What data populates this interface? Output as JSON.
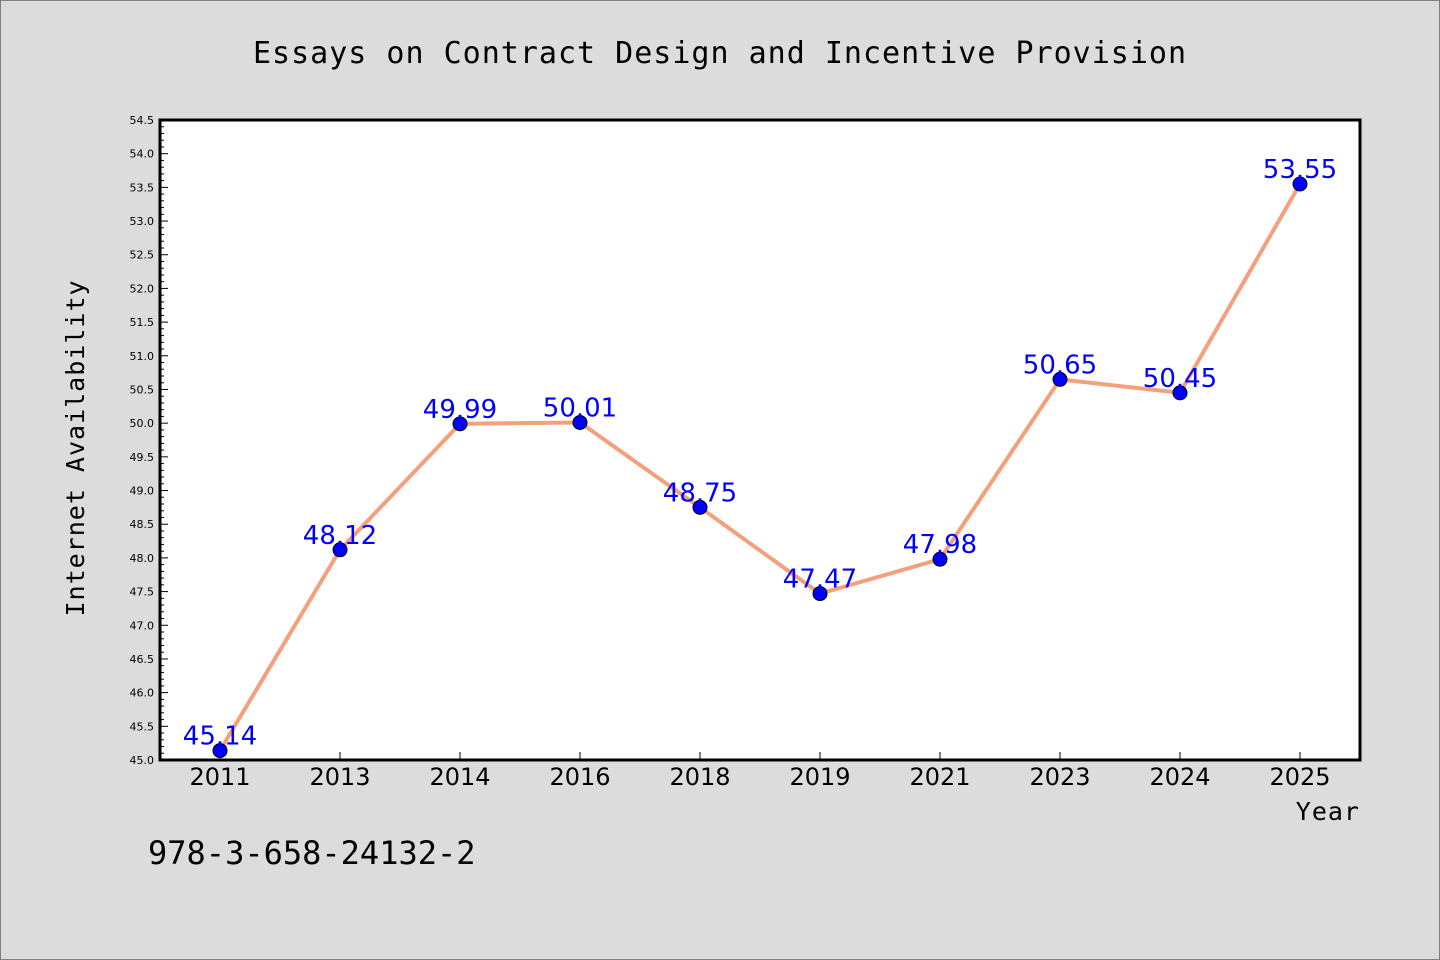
{
  "chart_data": {
    "type": "line",
    "title": "Essays on Contract Design and Incentive Provision",
    "xlabel": "Year",
    "ylabel": "Internet Availability",
    "categories": [
      "2011",
      "2013",
      "2014",
      "2016",
      "2018",
      "2019",
      "2021",
      "2023",
      "2024",
      "2025"
    ],
    "series": [
      {
        "values": [
          45.14,
          48.12,
          49.99,
          50.01,
          48.75,
          47.47,
          47.98,
          50.65,
          50.45,
          53.55
        ],
        "labels": [
          "45.14",
          "48.12",
          "49.99",
          "50.01",
          "48.75",
          "47.47",
          "47.98",
          "50.65",
          "50.45",
          "53.55"
        ]
      }
    ],
    "ylim": [
      45.0,
      54.5
    ],
    "ytick_labels": [
      "45.0",
      "45.5",
      "46.0",
      "46.5",
      "47.0",
      "47.5",
      "48.0",
      "48.5",
      "49.0",
      "49.5",
      "50.0",
      "50.5",
      "51.0",
      "51.5",
      "52.0",
      "52.5",
      "53.0",
      "53.5",
      "54.0",
      "54.5"
    ],
    "grid": false,
    "legend": "none",
    "colors": {
      "line": "#f4a07c",
      "marker": "#0000ff",
      "data_label": "#0000ff",
      "background": "#dcdcdc",
      "plot_area": "#ffffff"
    }
  },
  "footer": {
    "isbn": "978-3-658-24132-2"
  }
}
